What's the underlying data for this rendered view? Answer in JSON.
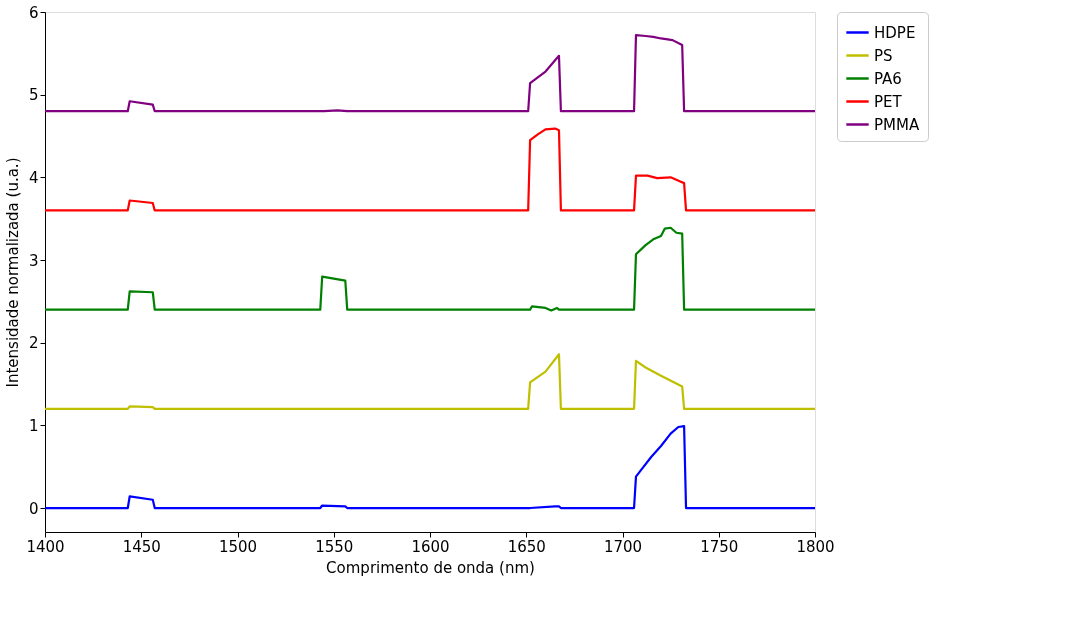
{
  "chart_data": {
    "type": "line",
    "xlabel": "Comprimento de onda (nm)",
    "ylabel": "Intensidade normalizada (u.a.)",
    "xlim": [
      1400,
      1800
    ],
    "ylim": [
      -0.29,
      6
    ],
    "xticks": [
      1400,
      1450,
      1500,
      1550,
      1600,
      1650,
      1700,
      1750,
      1800
    ],
    "yticks": [
      0,
      1,
      2,
      3,
      4,
      5,
      6
    ],
    "grid": false,
    "legend": "right",
    "marker": "none",
    "line_style": "solid",
    "series": [
      {
        "name": "HDPE",
        "color": "#0000ff",
        "x": [
          1400,
          1443,
          1444,
          1456,
          1457,
          1543,
          1544,
          1556,
          1557,
          1652,
          1665,
          1667,
          1668,
          1706,
          1707,
          1710,
          1715,
          1720,
          1725,
          1729,
          1732,
          1733,
          1800
        ],
        "values": [
          0,
          0,
          0.14,
          0.1,
          0,
          0,
          0.03,
          0.02,
          0,
          0,
          0.02,
          0.02,
          0,
          0,
          0.38,
          0.47,
          0.62,
          0.75,
          0.9,
          0.98,
          0.99,
          0,
          0
        ]
      },
      {
        "name": "PS",
        "color": "#bfbf00",
        "x": [
          1400,
          1443,
          1444,
          1456,
          1457,
          1651,
          1652,
          1660,
          1667,
          1668,
          1706,
          1707,
          1712,
          1720,
          1731,
          1732,
          1800
        ],
        "values": [
          1.2,
          1.2,
          1.23,
          1.22,
          1.2,
          1.2,
          1.52,
          1.65,
          1.86,
          1.2,
          1.2,
          1.78,
          1.7,
          1.6,
          1.47,
          1.2,
          1.2
        ]
      },
      {
        "name": "PA6",
        "color": "#008000",
        "x": [
          1400,
          1443,
          1444,
          1456,
          1457,
          1543,
          1544,
          1556,
          1557,
          1652,
          1653,
          1660,
          1663,
          1666,
          1667,
          1706,
          1707,
          1712,
          1716,
          1720,
          1722,
          1725,
          1728,
          1731,
          1732,
          1800
        ],
        "values": [
          2.4,
          2.4,
          2.62,
          2.61,
          2.4,
          2.4,
          2.8,
          2.75,
          2.4,
          2.4,
          2.44,
          2.42,
          2.39,
          2.42,
          2.4,
          2.4,
          3.07,
          3.18,
          3.25,
          3.29,
          3.38,
          3.39,
          3.33,
          3.32,
          2.4,
          2.4
        ]
      },
      {
        "name": "PET",
        "color": "#ff0000",
        "x": [
          1400,
          1443,
          1444,
          1456,
          1457,
          1651,
          1652,
          1656,
          1660,
          1665,
          1667,
          1668,
          1706,
          1707,
          1713,
          1718,
          1725,
          1730,
          1732,
          1733,
          1800
        ],
        "values": [
          3.6,
          3.6,
          3.72,
          3.69,
          3.6,
          3.6,
          4.45,
          4.52,
          4.58,
          4.59,
          4.57,
          3.6,
          3.6,
          4.02,
          4.02,
          3.99,
          4.0,
          3.95,
          3.93,
          3.6,
          3.6
        ]
      },
      {
        "name": "PMMA",
        "color": "#800080",
        "x": [
          1400,
          1443,
          1444,
          1456,
          1457,
          1545,
          1552,
          1557,
          1651,
          1652,
          1660,
          1667,
          1668,
          1706,
          1707,
          1712,
          1716,
          1720,
          1726,
          1731,
          1732,
          1800
        ],
        "values": [
          4.8,
          4.8,
          4.92,
          4.88,
          4.8,
          4.8,
          4.81,
          4.8,
          4.8,
          5.14,
          5.28,
          5.47,
          4.8,
          4.8,
          5.72,
          5.71,
          5.7,
          5.68,
          5.66,
          5.6,
          4.8,
          4.8
        ]
      }
    ]
  }
}
